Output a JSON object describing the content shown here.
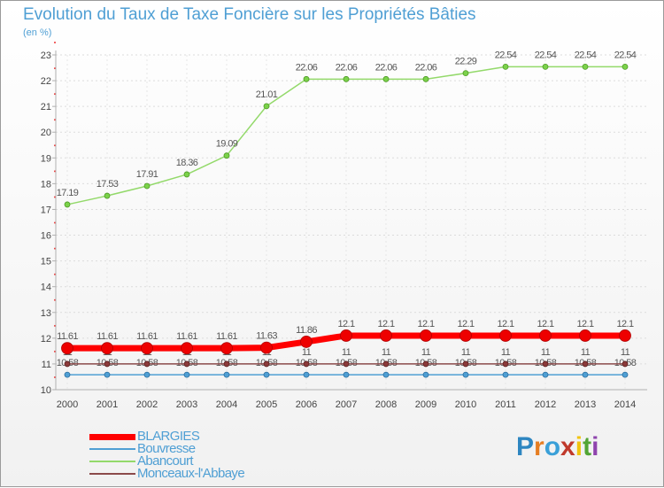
{
  "title": "Evolution du Taux de Taxe Foncière sur les Propriétés Bâties",
  "unit_label": "(en %)",
  "brand": {
    "chars": [
      "P",
      "r",
      "o",
      "x",
      "i",
      "t",
      "i"
    ],
    "colors": [
      "#2e86c1",
      "#e67e22",
      "#3aa0d8",
      "#c0392b",
      "#f1c40f",
      "#52a535",
      "#8e44ad"
    ]
  },
  "chart_data": {
    "type": "line",
    "title": "Evolution du Taux de Taxe Foncière sur les Propriétés Bâties",
    "ylabel": "(en %)",
    "xlabel": "",
    "ylim": [
      10,
      23
    ],
    "yticks": [
      "10",
      "11",
      "12",
      "13",
      "14",
      "15",
      "16",
      "17",
      "18",
      "19",
      "20",
      "21",
      "22",
      "23"
    ],
    "categories": [
      "2000",
      "2001",
      "2002",
      "2003",
      "2004",
      "2005",
      "2006",
      "2007",
      "2008",
      "2009",
      "2010",
      "2011",
      "2012",
      "2013",
      "2014"
    ],
    "grid": true,
    "series": [
      {
        "name": "BLARGIES",
        "color": "#ff0000",
        "values": [
          11.61,
          11.61,
          11.61,
          11.61,
          11.61,
          11.63,
          11.86,
          12.1,
          12.1,
          12.1,
          12.1,
          12.1,
          12.1,
          12.1,
          12.1
        ],
        "labels": [
          "11.61",
          "11.61",
          "11.61",
          "11.61",
          "11.61",
          "11.63",
          "11.86",
          "12.1",
          "12.1",
          "12.1",
          "12.1",
          "12.1",
          "12.1",
          "12.1",
          "12.1"
        ]
      },
      {
        "name": "Bouvresse",
        "color": "#4f9fd4",
        "values": [
          10.58,
          10.58,
          10.58,
          10.58,
          10.58,
          10.58,
          10.58,
          10.58,
          10.58,
          10.58,
          10.58,
          10.58,
          10.58,
          10.58,
          10.58
        ],
        "labels": [
          "10.58",
          "10.58",
          "10.58",
          "10.58",
          "10.58",
          "10.58",
          "10.58",
          "10.58",
          "10.58",
          "10.58",
          "10.58",
          "10.58",
          "10.58",
          "10.58",
          "10.58"
        ]
      },
      {
        "name": "Abancourt",
        "color": "#93d96a",
        "values": [
          17.19,
          17.53,
          17.91,
          18.36,
          19.09,
          21.01,
          22.06,
          22.06,
          22.06,
          22.06,
          22.29,
          22.54,
          22.54,
          22.54,
          22.54
        ],
        "labels": [
          "17.19",
          "17.53",
          "17.91",
          "18.36",
          "19.09",
          "21.01",
          "22.06",
          "22.06",
          "22.06",
          "22.06",
          "22.29",
          "22.54",
          "22.54",
          "22.54",
          "22.54"
        ]
      },
      {
        "name": "Monceaux-l'Abbaye",
        "color": "#8b4a4a",
        "values": [
          11,
          11,
          11,
          11,
          11,
          11,
          11,
          11,
          11,
          11,
          11,
          11,
          11,
          11,
          11
        ],
        "labels": [
          "11",
          "11",
          "11",
          "11",
          "11",
          "11",
          "11",
          "11",
          "11",
          "11",
          "11",
          "11",
          "11",
          "11",
          "11"
        ]
      }
    ]
  }
}
